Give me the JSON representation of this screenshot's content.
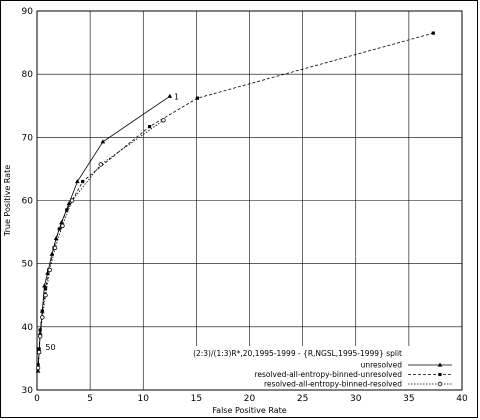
{
  "chart_data": {
    "type": "line",
    "xlabel": "False Positive Rate",
    "ylabel": "True Positive Rate",
    "xlim": [
      0,
      40
    ],
    "ylim": [
      30,
      90
    ],
    "xticks": [
      "0",
      "5",
      "10",
      "15",
      "20",
      "25",
      "30",
      "35",
      "40"
    ],
    "yticks": [
      "30",
      "40",
      "50",
      "60",
      "70",
      "80",
      "90"
    ],
    "grid": true,
    "legend_position": "bottom-right",
    "legend_title": "(2:3)/(1:3)R*,20,1995-1999 - {R,NGSL,1995-1999} split",
    "series": [
      {
        "name": "unresolved",
        "color": "#000000",
        "marker": "triangle",
        "dash": "solid",
        "x": [
          0.1,
          0.2,
          0.3,
          0.5,
          0.7,
          1.0,
          1.4,
          1.8,
          2.3,
          3.0,
          3.8,
          6.2,
          12.5
        ],
        "y": [
          33.0,
          36.0,
          39.0,
          42.5,
          46.5,
          48.5,
          51.5,
          54.0,
          56.5,
          59.5,
          63.0,
          69.3,
          76.5
        ]
      },
      {
        "name": "resolved-all-entropy-binned-unresolved",
        "color": "#000000",
        "marker": "square",
        "dash": "dashed",
        "x": [
          0.1,
          0.2,
          0.3,
          0.5,
          0.8,
          1.1,
          1.6,
          2.1,
          2.8,
          4.3,
          10.6,
          15.1,
          37.3
        ],
        "y": [
          34.0,
          36.5,
          39.5,
          42.5,
          46.0,
          49.0,
          52.5,
          55.5,
          58.5,
          63.0,
          71.7,
          76.2,
          86.5
        ]
      },
      {
        "name": "resolved-all-entropy-binned-resolved",
        "color": "#000000",
        "marker": "circle",
        "dash": "dotted",
        "x": [
          0.1,
          0.2,
          0.3,
          0.5,
          0.8,
          1.2,
          1.7,
          2.4,
          3.3,
          6.0,
          11.9
        ],
        "y": [
          33.5,
          36.0,
          38.5,
          41.5,
          45.0,
          49.0,
          52.5,
          56.0,
          60.0,
          65.7,
          72.7
        ]
      }
    ],
    "annotations": [
      {
        "text": "1",
        "x": 12.7,
        "y": 76.5
      },
      {
        "text": "50",
        "x": 0.6,
        "y": 36.8
      }
    ]
  }
}
